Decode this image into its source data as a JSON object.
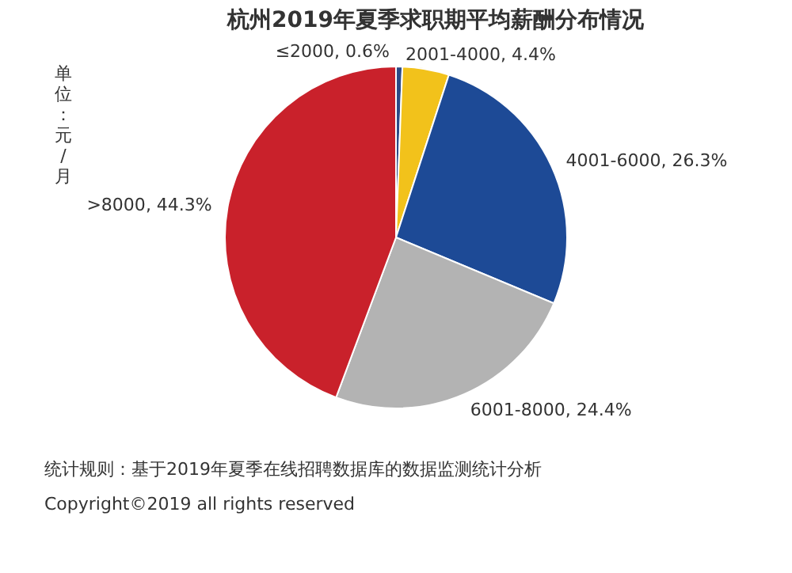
{
  "chart_data": {
    "type": "pie",
    "title": "杭州2019年夏季求职期平均薪酬分布情况",
    "ylabel": "单位：元/月",
    "categories": [
      "≤2000",
      "2001-4000",
      "4001-6000",
      "6001-8000",
      ">8000"
    ],
    "value_labels": [
      ", 0.6%",
      ", 4.4%",
      ", 26.3%",
      ", 24.4%",
      ", 44.3%"
    ],
    "values": [
      0.6,
      4.4,
      26.3,
      24.4,
      44.3
    ],
    "colors": [
      "#2b4a86",
      "#f2c21b",
      "#1d4a96",
      "#b3b3b3",
      "#c9212b"
    ],
    "annotations": [
      "统计规则：基于2019年夏季在线招聘数据库的数据监测统计分析",
      "Copyright©2019 all rights reserved"
    ]
  }
}
